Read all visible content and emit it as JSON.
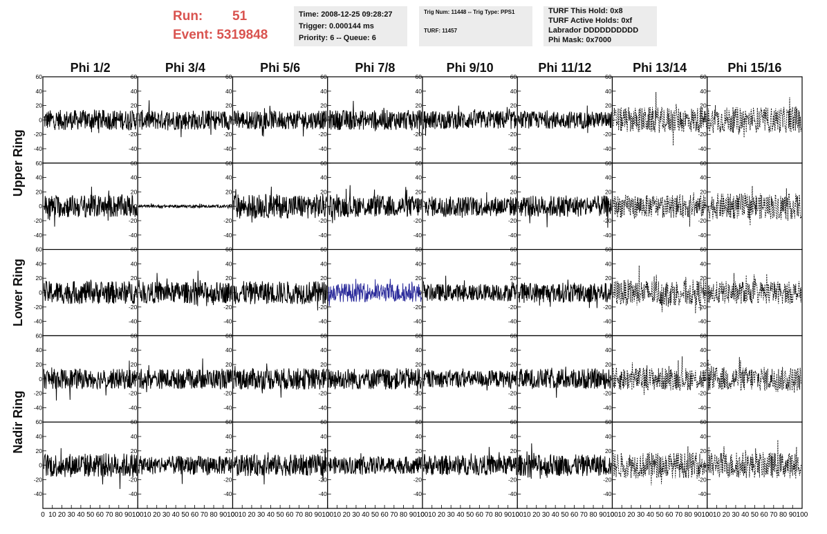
{
  "header": {
    "run_label": "Run:",
    "run_value": "51",
    "event_label": "Event:",
    "event_value": "5319848"
  },
  "info_boxes": {
    "time": "Time: 2008-12-25 09:28:27",
    "trigger": "Trigger: 0.000144 ms",
    "priority": "Priority: 6 -- Queue: 6",
    "trig_num": "Trig Num: 11448 -- Trig Type: PPS1",
    "turf_num": "TURF: 11457",
    "turf_hold": "TURF This Hold: 0x8",
    "turf_active": "TURF Active Holds: 0xf",
    "labrador": "Labrador DDDDDDDDDD",
    "phi_mask": "Phi Mask: 0x7000"
  },
  "colors": {
    "run_text": "#d9534f",
    "trace_default": "#000000",
    "trace_highlight": "#2b2b9b",
    "info_box_bg": "#ececec"
  },
  "chart_data": {
    "type": "line",
    "columns": [
      "Phi 1/2",
      "Phi 3/4",
      "Phi 5/6",
      "Phi 7/8",
      "Phi 9/10",
      "Phi 11/12",
      "Phi 13/14",
      "Phi 15/16"
    ],
    "rows": [
      "Upper Ring",
      "Lower Ring",
      "Nadir Ring"
    ],
    "panel_rows": 5,
    "ylim": [
      -60,
      60
    ],
    "yticks": [
      -40,
      -20,
      0,
      20,
      40,
      60
    ],
    "xlim": [
      0,
      100
    ],
    "xticks": [
      0,
      10,
      20,
      30,
      40,
      50,
      60,
      70,
      80,
      90,
      100
    ],
    "highlighted_panel": {
      "row": 2,
      "col": 3,
      "color": "#2b2b9b"
    },
    "dashed_columns": [
      6,
      7
    ],
    "amplitudes": [
      [
        14,
        14,
        13,
        14,
        13,
        12,
        18,
        18
      ],
      [
        16,
        2,
        17,
        15,
        14,
        15,
        16,
        18
      ],
      [
        16,
        15,
        16,
        13,
        12,
        14,
        18,
        16
      ],
      [
        14,
        14,
        15,
        15,
        12,
        14,
        16,
        17
      ],
      [
        17,
        13,
        15,
        12,
        14,
        15,
        18,
        18
      ]
    ]
  }
}
